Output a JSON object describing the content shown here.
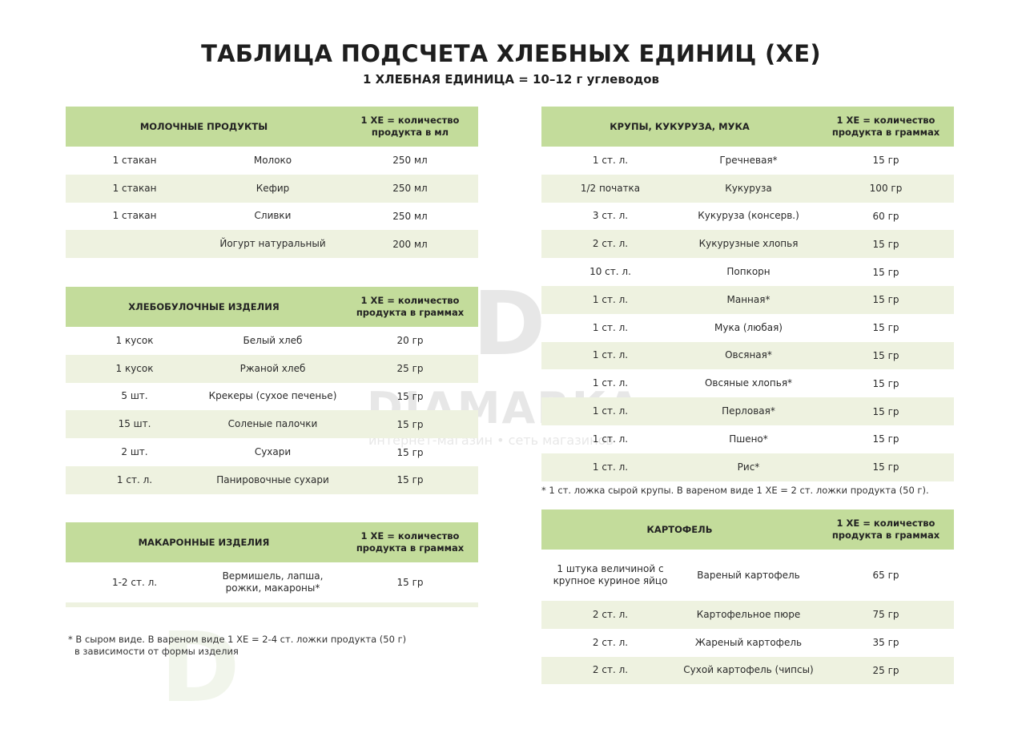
{
  "title": "ТАБЛИЦА ПОДСЧЕТА ХЛЕБНЫХ ЕДИНИЦ (ХЕ)",
  "subtitle": "1 ХЛЕБНАЯ ЕДИНИЦА = 10–12 г углеводов",
  "watermark": {
    "brand": "DIAMARKA",
    "tagline": "интернет-магазин • сеть магазинов"
  },
  "colors": {
    "header": "#c3dc9b",
    "alt_row": "#eef2e0"
  },
  "dairy": {
    "header": "МОЛОЧНЫЕ ПРОДУКТЫ",
    "unit_header": "1 ХЕ = количество продукта в мл",
    "rows": [
      [
        "1 стакан",
        "Молоко",
        "250 мл"
      ],
      [
        "1 стакан",
        "Кефир",
        "250 мл"
      ],
      [
        "1 стакан",
        "Сливки",
        "250 мл"
      ],
      [
        "",
        "Йогурт натуральный",
        "200 мл"
      ]
    ]
  },
  "bread": {
    "header": "ХЛЕБОБУЛОЧНЫЕ ИЗДЕЛИЯ",
    "unit_header": "1 ХЕ = количество продукта в граммах",
    "rows": [
      [
        "1 кусок",
        "Белый хлеб",
        "20 гр"
      ],
      [
        "1 кусок",
        "Ржаной хлеб",
        "25 гр"
      ],
      [
        "5 шт.",
        "Крекеры (сухое печенье)",
        "15 гр"
      ],
      [
        "15 шт.",
        "Соленые палочки",
        "15 гр"
      ],
      [
        "2 шт.",
        "Сухари",
        "15 гр"
      ],
      [
        "1 ст. л.",
        "Панировочные сухари",
        "15 гр"
      ]
    ]
  },
  "pasta": {
    "header": "МАКАРОННЫЕ ИЗДЕЛИЯ",
    "unit_header": "1 ХЕ = количество продукта в граммах",
    "rows": [
      [
        "1-2 ст. л.",
        "Вермишель, лапша, рожки, макароны*",
        "15 гр"
      ]
    ],
    "footnote": "* В сыром виде. В вареном виде 1 ХЕ = 2-4 ст. ложки продукта (50 г)",
    "footnote2": "в зависимости от формы изделия"
  },
  "grains": {
    "header": "КРУПЫ, КУКУРУЗА, МУКА",
    "unit_header": "1 ХЕ = количество продукта в граммах",
    "rows": [
      [
        "1 ст. л.",
        "Гречневая*",
        "15  гр"
      ],
      [
        "1/2 початка",
        "Кукуруза",
        "100 гр"
      ],
      [
        "3 ст. л.",
        "Кукуруза (консерв.)",
        "60 гр"
      ],
      [
        "2 ст. л.",
        "Кукурузные хлопья",
        "15 гр"
      ],
      [
        "10 ст. л.",
        "Попкорн",
        "15 гр"
      ],
      [
        "1 ст. л.",
        "Манная*",
        "15 гр"
      ],
      [
        "1 ст. л.",
        "Мука (любая)",
        "15 гр"
      ],
      [
        "1 ст. л.",
        "Овсяная*",
        "15 гр"
      ],
      [
        "1 ст. л.",
        "Овсяные хлопья*",
        "15 гр"
      ],
      [
        "1 ст. л.",
        "Перловая*",
        "15 гр"
      ],
      [
        "1 ст. л.",
        "Пшено*",
        "15 гр"
      ],
      [
        "1 ст. л.",
        "Рис*",
        "15 гр"
      ]
    ],
    "footnote": "* 1 ст. ложка сырой крупы. В вареном виде 1 ХЕ = 2 ст. ложки продукта (50 г)."
  },
  "potato": {
    "header": "КАРТОФЕЛЬ",
    "unit_header": "1 ХЕ = количество продукта в граммах",
    "rows": [
      [
        "1 штука величиной с крупное куриное яйцо",
        "Вареный картофель",
        "65 гр"
      ],
      [
        "2 ст. л.",
        "Картофельное пюре",
        "75 гр"
      ],
      [
        "2 ст. л.",
        "Жареный картофель",
        "35 гр"
      ],
      [
        "2 ст. л.",
        "Сухой картофель (чипсы)",
        "25 гр"
      ]
    ]
  }
}
